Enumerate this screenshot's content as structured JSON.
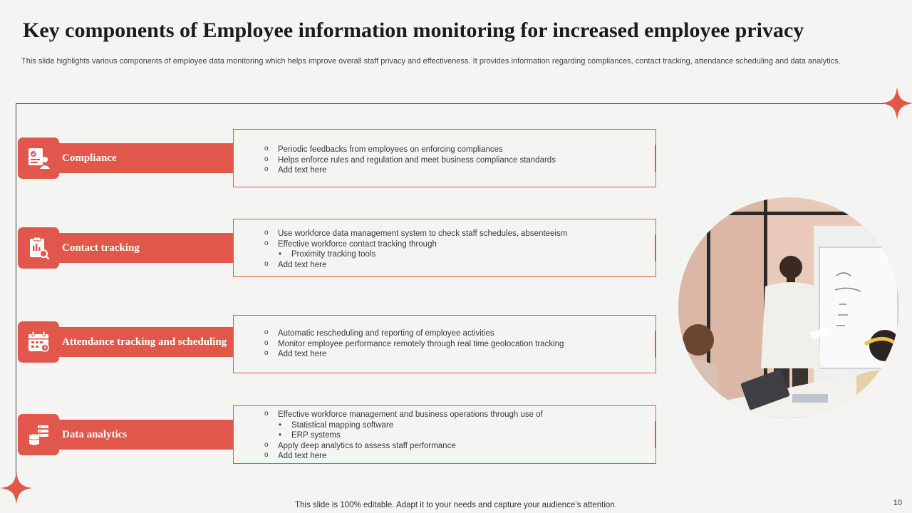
{
  "slide": {
    "title": "Key components of Employee information monitoring for increased employee privacy",
    "subtitle": "This slide highlights various components of employee data monitoring which helps improve overall staff privacy and effectiveness. It provides information regarding compliances, contact tracking, attendance scheduling and data analytics.",
    "footer": "This slide is 100% editable. Adapt it to your needs and capture your audience’s attention.",
    "page_number": "10"
  },
  "colors": {
    "accent": "#e2574c",
    "background": "#f4f4f2",
    "title": "#1b1b1b"
  },
  "components": [
    {
      "label": "Compliance",
      "icon": "compliance-document-icon",
      "lines": [
        {
          "type": "item",
          "text": "Periodic feedbacks from employees on enforcing compliances"
        },
        {
          "type": "item",
          "text": "Helps enforce rules and regulation and meet business compliance standards"
        },
        {
          "type": "item",
          "text": "Add text here"
        }
      ]
    },
    {
      "label": "Contact tracking",
      "icon": "clipboard-search-icon",
      "lines": [
        {
          "type": "item",
          "text": "Use workforce data management system to check staff schedules, absenteeism"
        },
        {
          "type": "item",
          "text": "Effective workforce contact tracking through"
        },
        {
          "type": "sub",
          "text": "Proximity tracking tools"
        },
        {
          "type": "item",
          "text": "Add text here"
        }
      ]
    },
    {
      "label": "Attendance tracking and scheduling",
      "icon": "calendar-icon",
      "lines": [
        {
          "type": "item",
          "text": "Automatic rescheduling and reporting of employee activities"
        },
        {
          "type": "item",
          "text": "Monitor employee performance remotely through real time geolocation tracking"
        },
        {
          "type": "item",
          "text": "Add text here"
        }
      ]
    },
    {
      "label": "Data analytics",
      "icon": "database-icon",
      "lines": [
        {
          "type": "item",
          "text": "Effective workforce management and business operations through use of"
        },
        {
          "type": "sub",
          "text": "Statistical mapping software"
        },
        {
          "type": "sub",
          "text": "ERP systems"
        },
        {
          "type": "item",
          "text": "Apply deep analytics to  assess staff performance"
        },
        {
          "type": "item",
          "text": "Add text here"
        }
      ]
    }
  ]
}
